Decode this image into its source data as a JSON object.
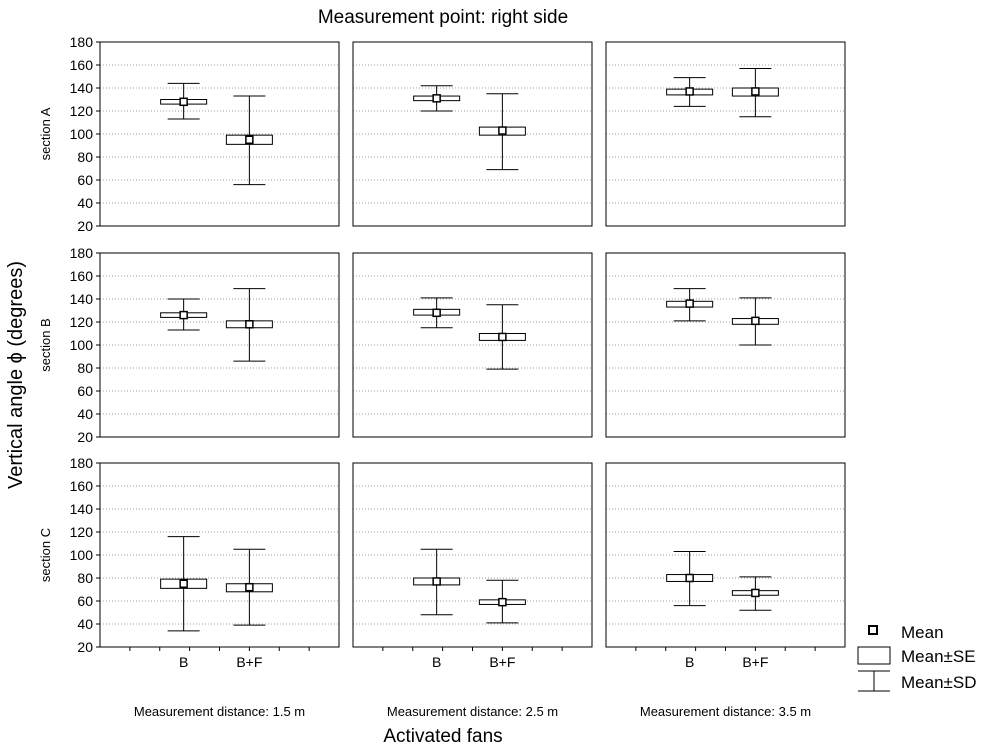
{
  "chart_data": {
    "type": "box",
    "title": "Measurement point: right side",
    "xlabel": "Activated fans",
    "ylabel": "Vertical angle ϕ (degrees)",
    "categories": [
      "B",
      "B+F"
    ],
    "ylim": [
      20,
      180
    ],
    "yticks": [
      20,
      40,
      60,
      80,
      100,
      120,
      140,
      160,
      180
    ],
    "grid": true,
    "columns": [
      "Measurement distance: 1.5 m",
      "Measurement distance: 2.5 m",
      "Measurement distance: 3.5 m"
    ],
    "rows": [
      "section A",
      "section B",
      "section C"
    ],
    "legend": {
      "position": "bottom-right",
      "items": [
        "Mean",
        "Mean±SE",
        "Mean±SD"
      ]
    },
    "panels": [
      {
        "row": 0,
        "col": 0,
        "groups": [
          {
            "category": "B",
            "mean": 128,
            "se_low": 126,
            "se_high": 130,
            "sd_low": 113,
            "sd_high": 144
          },
          {
            "category": "B+F",
            "mean": 95,
            "se_low": 91,
            "se_high": 99,
            "sd_low": 56,
            "sd_high": 133
          }
        ]
      },
      {
        "row": 0,
        "col": 1,
        "groups": [
          {
            "category": "B",
            "mean": 131,
            "se_low": 129,
            "se_high": 133,
            "sd_low": 120,
            "sd_high": 142
          },
          {
            "category": "B+F",
            "mean": 103,
            "se_low": 99,
            "se_high": 106,
            "sd_low": 69,
            "sd_high": 135
          }
        ]
      },
      {
        "row": 0,
        "col": 2,
        "groups": [
          {
            "category": "B",
            "mean": 137,
            "se_low": 134,
            "se_high": 139,
            "sd_low": 124,
            "sd_high": 149
          },
          {
            "category": "B+F",
            "mean": 137,
            "se_low": 133,
            "se_high": 140,
            "sd_low": 115,
            "sd_high": 157
          }
        ]
      },
      {
        "row": 1,
        "col": 0,
        "groups": [
          {
            "category": "B",
            "mean": 126,
            "se_low": 124,
            "se_high": 128,
            "sd_low": 113,
            "sd_high": 140
          },
          {
            "category": "B+F",
            "mean": 118,
            "se_low": 115,
            "se_high": 121,
            "sd_low": 86,
            "sd_high": 149
          }
        ]
      },
      {
        "row": 1,
        "col": 1,
        "groups": [
          {
            "category": "B",
            "mean": 128,
            "se_low": 126,
            "se_high": 131,
            "sd_low": 115,
            "sd_high": 141
          },
          {
            "category": "B+F",
            "mean": 107,
            "se_low": 104,
            "se_high": 110,
            "sd_low": 79,
            "sd_high": 135
          }
        ]
      },
      {
        "row": 1,
        "col": 2,
        "groups": [
          {
            "category": "B",
            "mean": 136,
            "se_low": 133,
            "se_high": 138,
            "sd_low": 121,
            "sd_high": 149
          },
          {
            "category": "B+F",
            "mean": 121,
            "se_low": 118,
            "se_high": 123,
            "sd_low": 100,
            "sd_high": 141
          }
        ]
      },
      {
        "row": 2,
        "col": 0,
        "groups": [
          {
            "category": "B",
            "mean": 75,
            "se_low": 71,
            "se_high": 79,
            "sd_low": 34,
            "sd_high": 116
          },
          {
            "category": "B+F",
            "mean": 72,
            "se_low": 68,
            "se_high": 75,
            "sd_low": 39,
            "sd_high": 105
          }
        ]
      },
      {
        "row": 2,
        "col": 1,
        "groups": [
          {
            "category": "B",
            "mean": 77,
            "se_low": 74,
            "se_high": 80,
            "sd_low": 48,
            "sd_high": 105
          },
          {
            "category": "B+F",
            "mean": 59,
            "se_low": 57,
            "se_high": 61,
            "sd_low": 41,
            "sd_high": 78
          }
        ]
      },
      {
        "row": 2,
        "col": 2,
        "groups": [
          {
            "category": "B",
            "mean": 80,
            "se_low": 77,
            "se_high": 83,
            "sd_low": 56,
            "sd_high": 103
          },
          {
            "category": "B+F",
            "mean": 67,
            "se_low": 65,
            "se_high": 69,
            "sd_low": 52,
            "sd_high": 81
          }
        ]
      }
    ]
  }
}
